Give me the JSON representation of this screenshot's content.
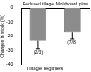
{
  "chart_data": {
    "type": "bar",
    "categories": [
      "Reduced tillage",
      "Moldboard plow"
    ],
    "values": [
      -23,
      -17
    ],
    "errors": [
      6,
      5
    ],
    "bar_notes": [
      "(2/3)",
      "(7/8)"
    ],
    "x_label": "Tillage regimes",
    "y_label": "Changes in stock (%)",
    "color": "#8c8c8c",
    "ylim": [
      -40,
      0
    ],
    "yticks": [
      -40,
      -30,
      -20,
      -10,
      0
    ],
    "grid": false
  }
}
